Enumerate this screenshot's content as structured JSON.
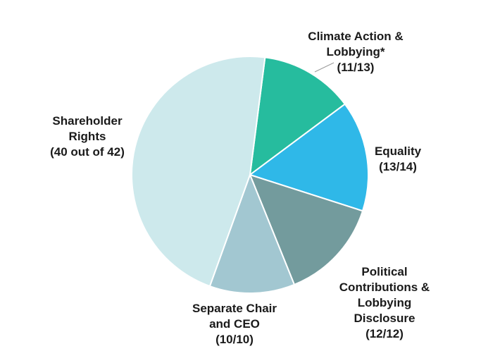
{
  "chart_data": {
    "type": "pie",
    "title": "",
    "slices": [
      {
        "key": "climate",
        "lines": [
          "Climate Action &",
          "Lobbying*",
          "(11/13)"
        ],
        "value": 11,
        "color": "#26bc9e"
      },
      {
        "key": "equality",
        "lines": [
          "Equality",
          "(13/14)"
        ],
        "value": 13,
        "color": "#2fb8e8"
      },
      {
        "key": "political",
        "lines": [
          "Political",
          "Contributions &",
          "Lobbying",
          "Disclosure",
          "(12/12)"
        ],
        "value": 12,
        "color": "#739b9d"
      },
      {
        "key": "separate",
        "lines": [
          "Separate Chair",
          "and CEO",
          "(10/10)"
        ],
        "value": 10,
        "color": "#a2c7d1"
      },
      {
        "key": "shareholder",
        "lines": [
          "Shareholder",
          "Rights",
          "(40 out of 42)"
        ],
        "value": 40,
        "color": "#cde9ec"
      }
    ]
  }
}
